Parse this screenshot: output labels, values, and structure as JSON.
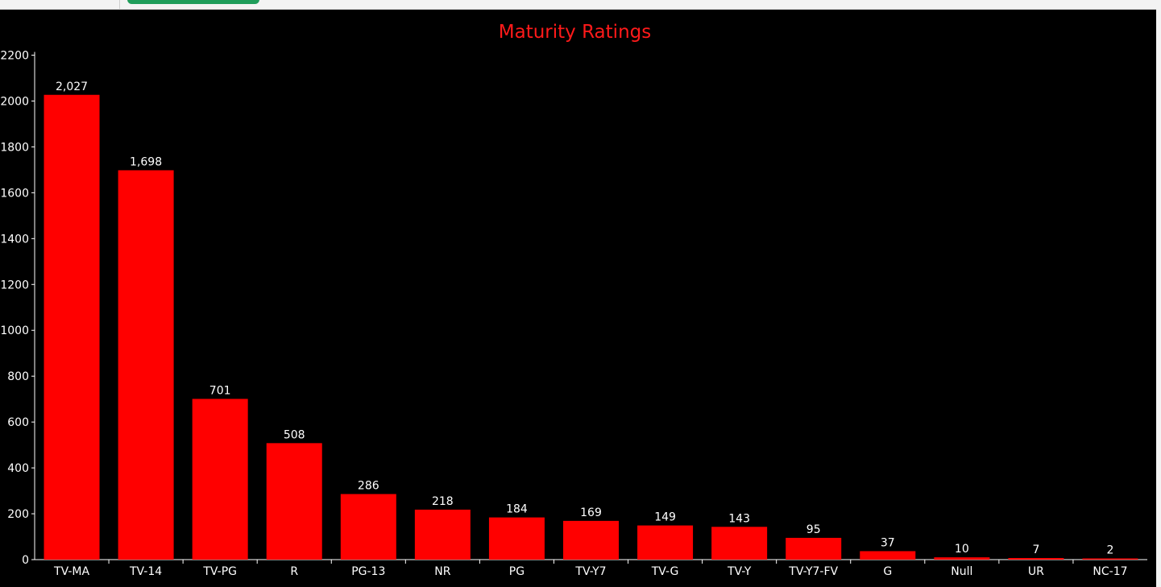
{
  "chart_data": {
    "type": "bar",
    "title": "Maturity Ratings",
    "xlabel": "",
    "ylabel": "",
    "categories": [
      "TV-MA",
      "TV-14",
      "TV-PG",
      "R",
      "PG-13",
      "NR",
      "PG",
      "TV-Y7",
      "TV-G",
      "TV-Y",
      "TV-Y7-FV",
      "G",
      "Null",
      "UR",
      "NC-17"
    ],
    "values": [
      2027,
      1698,
      701,
      508,
      286,
      218,
      184,
      169,
      149,
      143,
      95,
      37,
      10,
      7,
      2
    ],
    "value_labels": [
      "2,027",
      "1,698",
      "701",
      "508",
      "286",
      "218",
      "184",
      "169",
      "149",
      "143",
      "95",
      "37",
      "10",
      "7",
      "2"
    ],
    "y_ticks": [
      0,
      200,
      400,
      600,
      800,
      1000,
      1200,
      1400,
      1600,
      1800,
      2000,
      2200
    ],
    "ylim": [
      0,
      2200
    ],
    "grid": false,
    "bar_color": "#ff0000",
    "background_color": "#000000",
    "title_color": "#ff1a1a"
  }
}
